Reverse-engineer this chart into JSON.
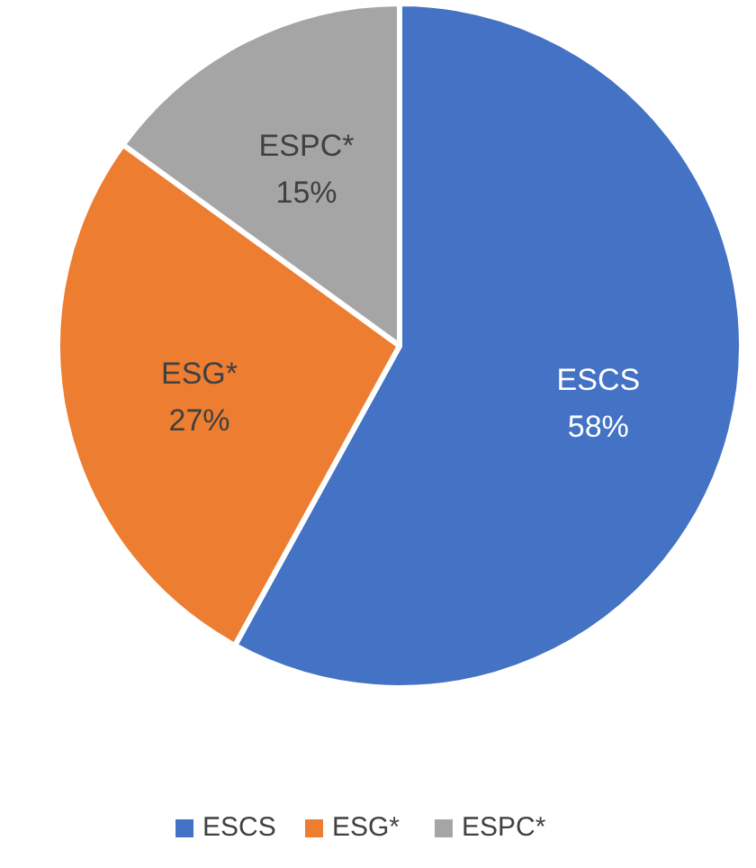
{
  "chart_data": {
    "type": "pie",
    "categories": [
      "ESCS",
      "ESG*",
      "ESPC*"
    ],
    "values": [
      58,
      27,
      15
    ],
    "colors": [
      "#4472c4",
      "#ed7d31",
      "#a5a5a5"
    ],
    "value_labels": [
      "58%",
      "27%",
      "15%"
    ],
    "legend": "bottom"
  }
}
